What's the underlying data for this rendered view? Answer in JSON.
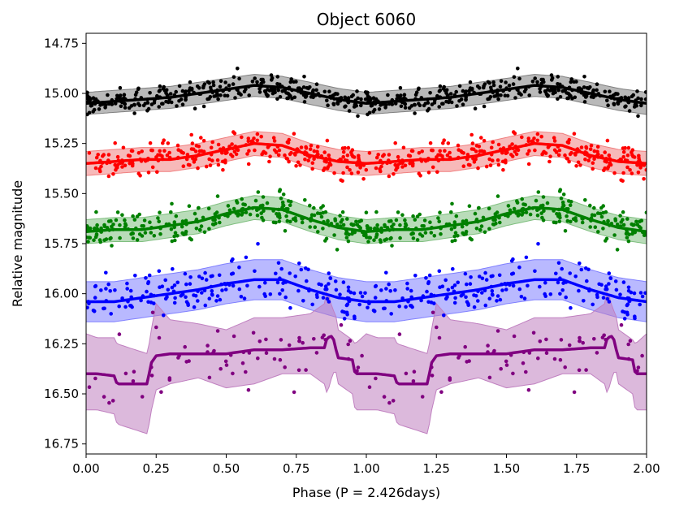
{
  "chart_data": {
    "type": "scatter",
    "title": "Object 6060",
    "xlabel": "Phase (P = 2.426days)",
    "ylabel": "Relative magnitude",
    "xlim": [
      0,
      2
    ],
    "ylim": [
      16.8,
      14.7
    ],
    "y_inverted": true,
    "x_ticks": [
      {
        "value": 0.0,
        "label": "0.00"
      },
      {
        "value": 0.25,
        "label": "0.25"
      },
      {
        "value": 0.5,
        "label": "0.50"
      },
      {
        "value": 0.75,
        "label": "0.75"
      },
      {
        "value": 1.0,
        "label": "1.00"
      },
      {
        "value": 1.25,
        "label": "1.25"
      },
      {
        "value": 1.5,
        "label": "1.50"
      },
      {
        "value": 1.75,
        "label": "1.75"
      },
      {
        "value": 2.0,
        "label": "2.00"
      }
    ],
    "y_ticks": [
      {
        "value": 14.75,
        "label": "14.75"
      },
      {
        "value": 15.0,
        "label": "15.00"
      },
      {
        "value": 15.25,
        "label": "15.25"
      },
      {
        "value": 15.5,
        "label": "15.50"
      },
      {
        "value": 15.75,
        "label": "15.75"
      },
      {
        "value": 16.0,
        "label": "16.00"
      },
      {
        "value": 16.25,
        "label": "16.25"
      },
      {
        "value": 16.5,
        "label": "16.50"
      },
      {
        "value": 16.75,
        "label": "16.75"
      }
    ],
    "grid": false,
    "series": [
      {
        "name": "black",
        "color": "#000000",
        "band_color": "#808080",
        "mean": 15.0,
        "amplitude": 0.035,
        "peak_phase": 0.68,
        "band_half_width": 0.055,
        "scatter_sigma": 0.045,
        "points": 300,
        "curve_phase": [
          0,
          0.1,
          0.2,
          0.3,
          0.4,
          0.5,
          0.6,
          0.7,
          0.8,
          0.9,
          1.0
        ],
        "curve_mag": [
          15.05,
          15.04,
          15.03,
          15.02,
          15.0,
          14.98,
          14.96,
          14.97,
          15.0,
          15.03,
          15.05
        ]
      },
      {
        "name": "red",
        "color": "#ff0000",
        "band_color": "#f08080",
        "mean": 15.3,
        "amplitude": 0.06,
        "peak_phase": 0.68,
        "band_half_width": 0.06,
        "scatter_sigma": 0.06,
        "points": 260,
        "curve_phase": [
          0,
          0.1,
          0.2,
          0.3,
          0.4,
          0.5,
          0.6,
          0.7,
          0.8,
          0.9,
          1.0
        ],
        "curve_mag": [
          15.35,
          15.34,
          15.33,
          15.33,
          15.31,
          15.28,
          15.25,
          15.26,
          15.31,
          15.34,
          15.35
        ]
      },
      {
        "name": "green",
        "color": "#008000",
        "band_color": "#7fbf7f",
        "mean": 15.63,
        "amplitude": 0.055,
        "peak_phase": 0.65,
        "band_half_width": 0.06,
        "scatter_sigma": 0.06,
        "points": 260,
        "curve_phase": [
          0,
          0.1,
          0.2,
          0.3,
          0.4,
          0.5,
          0.6,
          0.7,
          0.8,
          0.9,
          1.0
        ],
        "curve_mag": [
          15.69,
          15.68,
          15.68,
          15.66,
          15.64,
          15.6,
          15.57,
          15.58,
          15.63,
          15.67,
          15.69
        ]
      },
      {
        "name": "blue",
        "color": "#0000ff",
        "band_color": "#8080ff",
        "mean": 15.98,
        "amplitude": 0.06,
        "peak_phase": 0.67,
        "band_half_width": 0.1,
        "scatter_sigma": 0.08,
        "points": 180,
        "curve_phase": [
          0,
          0.1,
          0.2,
          0.3,
          0.4,
          0.5,
          0.6,
          0.7,
          0.8,
          0.9,
          1.0
        ],
        "curve_mag": [
          16.04,
          16.04,
          16.02,
          16.0,
          15.98,
          15.95,
          15.93,
          15.93,
          15.98,
          16.02,
          16.04
        ]
      },
      {
        "name": "purple",
        "color": "#800080",
        "band_color": "#c080c0",
        "mean": 16.35,
        "amplitude": 0.0,
        "peak_phase": 0.0,
        "band_half_width": 0.0,
        "scatter_sigma": 0.13,
        "points": 70,
        "curve_phase": [
          0,
          0.04,
          0.1,
          0.11,
          0.22,
          0.23,
          0.25,
          0.3,
          0.4,
          0.5,
          0.6,
          0.7,
          0.8,
          0.85,
          0.86,
          0.88,
          0.89,
          0.9,
          0.95,
          0.96,
          1.0
        ],
        "curve_mag": [
          16.4,
          16.4,
          16.41,
          16.45,
          16.45,
          16.35,
          16.31,
          16.3,
          16.3,
          16.3,
          16.28,
          16.28,
          16.27,
          16.27,
          16.22,
          16.21,
          16.27,
          16.32,
          16.33,
          16.4,
          16.4
        ],
        "band_upper": [
          16.2,
          16.22,
          16.22,
          16.25,
          16.3,
          16.2,
          16.05,
          16.13,
          16.15,
          16.18,
          16.12,
          16.12,
          16.1,
          16.05,
          15.98,
          16.08,
          16.1,
          16.18,
          16.23,
          16.25,
          16.2
        ],
        "band_lower": [
          16.58,
          16.58,
          16.6,
          16.65,
          16.7,
          16.6,
          16.48,
          16.45,
          16.42,
          16.47,
          16.45,
          16.4,
          16.4,
          16.45,
          16.5,
          16.4,
          16.38,
          16.45,
          16.5,
          16.58,
          16.58
        ]
      }
    ]
  }
}
